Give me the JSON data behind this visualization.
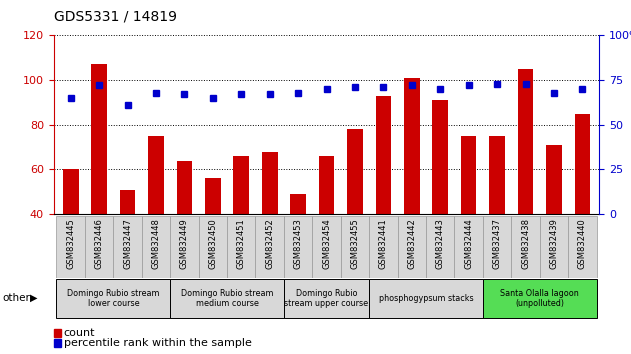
{
  "title": "GDS5331 / 14819",
  "samples": [
    "GSM832445",
    "GSM832446",
    "GSM832447",
    "GSM832448",
    "GSM832449",
    "GSM832450",
    "GSM832451",
    "GSM832452",
    "GSM832453",
    "GSM832454",
    "GSM832455",
    "GSM832441",
    "GSM832442",
    "GSM832443",
    "GSM832444",
    "GSM832437",
    "GSM832438",
    "GSM832439",
    "GSM832440"
  ],
  "counts": [
    60,
    107,
    51,
    75,
    64,
    56,
    66,
    68,
    49,
    66,
    78,
    93,
    101,
    91,
    75,
    75,
    105,
    71,
    85
  ],
  "percentiles": [
    65,
    72,
    61,
    68,
    67,
    65,
    67,
    67,
    68,
    70,
    71,
    71,
    72,
    70,
    72,
    73,
    73,
    68,
    70
  ],
  "ylim_left": [
    40,
    120
  ],
  "ylim_right": [
    0,
    100
  ],
  "yticks_left": [
    40,
    60,
    80,
    100,
    120
  ],
  "yticks_right": [
    0,
    25,
    50,
    75,
    100
  ],
  "bar_color": "#cc0000",
  "dot_color": "#0000cc",
  "groups": [
    {
      "label": "Domingo Rubio stream\nlower course",
      "start": 0,
      "end": 3,
      "color": "#d8d8d8"
    },
    {
      "label": "Domingo Rubio stream\nmedium course",
      "start": 4,
      "end": 7,
      "color": "#d8d8d8"
    },
    {
      "label": "Domingo Rubio\nstream upper course",
      "start": 8,
      "end": 10,
      "color": "#d8d8d8"
    },
    {
      "label": "phosphogypsum stacks",
      "start": 11,
      "end": 14,
      "color": "#d8d8d8"
    },
    {
      "label": "Santa Olalla lagoon\n(unpolluted)",
      "start": 15,
      "end": 18,
      "color": "#55dd55"
    }
  ],
  "other_label": "other",
  "legend_count": "count",
  "legend_percentile": "percentile rank within the sample"
}
